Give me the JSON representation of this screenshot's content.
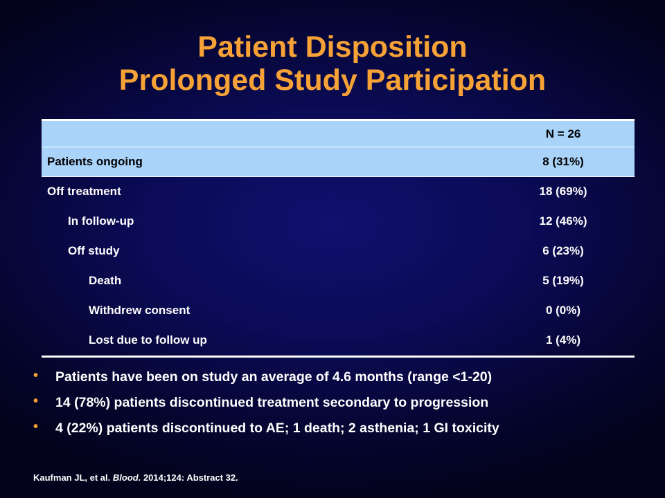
{
  "title": {
    "line1": "Patient Disposition",
    "line2": "Prolonged Study Participation"
  },
  "table": {
    "header_label": "",
    "header_value": "N = 26",
    "rows": [
      {
        "label": "Patients ongoing",
        "value": "8 (31%)"
      },
      {
        "label": "Off treatment",
        "value": "18 (69%)"
      },
      {
        "label": "In follow-up",
        "value": "12 (46%)"
      },
      {
        "label": "Off study",
        "value": "6 (23%)"
      },
      {
        "label": "Death",
        "value": "5 (19%)"
      },
      {
        "label": "Withdrew consent",
        "value": "0 (0%)"
      },
      {
        "label": "Lost due to follow  up",
        "value": "1 (4%)"
      }
    ]
  },
  "bullets": [
    "Patients have been on study an average of 4.6 months (range <1-20)",
    "14 (78%)  patients discontinued treatment secondary to progression",
    "4 (22%)  patients discontinued to AE; 1 death; 2 asthenia; 1 GI toxicity"
  ],
  "bullet_symbol": "•",
  "citation": {
    "authors": "Kaufman JL, et al.",
    "journal": "Blood.",
    "details": "2014;124: Abstract 32."
  },
  "colors": {
    "title": "#f7a236",
    "header_fill": "#a9d3f9",
    "background": "#0b0b58"
  }
}
